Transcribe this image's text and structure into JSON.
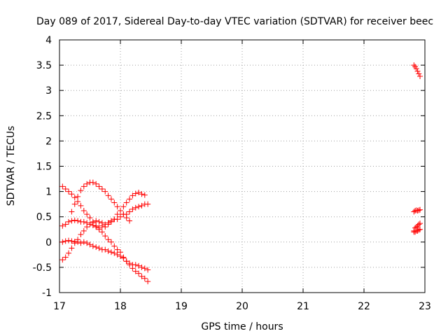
{
  "chart_data": {
    "type": "scatter",
    "title": "Day 089 of 2017, Sidereal Day-to-day VTEC variation (SDTVAR) for receiver beec",
    "xlabel": "GPS time / hours",
    "ylabel": "SDTVAR / TECUs",
    "xlim": [
      17,
      23
    ],
    "ylim": [
      -1,
      4
    ],
    "x_ticks": [
      "17",
      "18",
      "19",
      "20",
      "21",
      "22",
      "23"
    ],
    "y_ticks": [
      "-1",
      "-0.5",
      "0",
      "0.5",
      "1",
      "1.5",
      "2",
      "2.5",
      "3",
      "3.5",
      "4"
    ],
    "grid": true,
    "legend": "none",
    "marker": "plus",
    "color": "#ff0000",
    "series": [
      {
        "x": [
          17.05,
          17.1,
          17.15,
          17.2,
          17.25,
          17.3,
          17.35,
          17.4,
          17.45,
          17.5,
          17.55,
          17.6,
          17.65,
          17.7,
          17.75,
          17.8,
          17.85,
          17.9,
          17.95,
          18.0,
          18.05,
          18.1,
          18.15,
          18.2,
          18.25,
          18.3,
          18.35,
          18.4,
          18.45
        ],
        "y": [
          -0.35,
          -0.3,
          -0.22,
          -0.12,
          -0.02,
          0.05,
          0.15,
          0.22,
          0.3,
          0.35,
          0.38,
          0.42,
          0.4,
          0.38,
          0.35,
          0.38,
          0.42,
          0.45,
          0.45,
          0.5,
          0.55,
          0.55,
          0.6,
          0.65,
          0.68,
          0.7,
          0.72,
          0.75,
          0.75
        ]
      },
      {
        "x": [
          17.05,
          17.1,
          17.15,
          17.2,
          17.25,
          17.3,
          17.35,
          17.4,
          17.45,
          17.5,
          17.55,
          17.6,
          17.65,
          17.7,
          17.75,
          17.8,
          17.85,
          17.9,
          17.95,
          18.0,
          18.05,
          18.1,
          18.15,
          18.2,
          18.25,
          18.3,
          18.35,
          18.4,
          18.45
        ],
        "y": [
          0.0,
          0.02,
          0.03,
          0.02,
          0.01,
          0.0,
          -0.02,
          0.0,
          -0.02,
          -0.05,
          -0.08,
          -0.1,
          -0.12,
          -0.15,
          -0.15,
          -0.18,
          -0.2,
          -0.22,
          -0.25,
          -0.28,
          -0.32,
          -0.38,
          -0.42,
          -0.45,
          -0.45,
          -0.47,
          -0.5,
          -0.52,
          -0.55
        ]
      },
      {
        "x": [
          17.05,
          17.1,
          17.15,
          17.2,
          17.25,
          17.3,
          17.35,
          17.4,
          17.45,
          17.5,
          17.55,
          17.6,
          17.65,
          17.7,
          17.75,
          17.8,
          17.85,
          17.9,
          17.95,
          18.0,
          18.05,
          18.1,
          18.15,
          18.2,
          18.25,
          18.3,
          18.35,
          18.4
        ],
        "y": [
          0.32,
          0.35,
          0.4,
          0.42,
          0.43,
          0.42,
          0.4,
          0.4,
          0.38,
          0.35,
          0.33,
          0.3,
          0.28,
          0.32,
          0.3,
          0.35,
          0.4,
          0.45,
          0.55,
          0.62,
          0.7,
          0.78,
          0.85,
          0.92,
          0.96,
          0.98,
          0.95,
          0.93
        ]
      },
      {
        "x": [
          17.05,
          17.1,
          17.15,
          17.2,
          17.25,
          17.3,
          17.35,
          17.4,
          17.45,
          17.5,
          17.55,
          17.6,
          17.65,
          17.7,
          17.75,
          17.8,
          17.85,
          17.9,
          17.95,
          18.0,
          18.05,
          18.1,
          18.15,
          18.2,
          18.25,
          18.3,
          18.35,
          18.4,
          18.45
        ],
        "y": [
          1.1,
          1.05,
          1.0,
          0.95,
          0.88,
          0.8,
          0.72,
          0.62,
          0.55,
          0.48,
          0.4,
          0.32,
          0.25,
          0.2,
          0.12,
          0.05,
          0.0,
          -0.08,
          -0.15,
          -0.2,
          -0.3,
          -0.38,
          -0.45,
          -0.52,
          -0.58,
          -0.62,
          -0.68,
          -0.72,
          -0.78
        ]
      },
      {
        "x": [
          17.2,
          17.25,
          17.3,
          17.35,
          17.4,
          17.45,
          17.5,
          17.55,
          17.6,
          17.65,
          17.7,
          17.75,
          17.8,
          17.85,
          17.9,
          17.95,
          18.0,
          18.05,
          18.1,
          18.15
        ],
        "y": [
          0.6,
          0.75,
          0.9,
          1.02,
          1.1,
          1.15,
          1.18,
          1.18,
          1.15,
          1.1,
          1.05,
          1.0,
          0.92,
          0.85,
          0.78,
          0.7,
          0.62,
          0.55,
          0.48,
          0.42
        ]
      },
      {
        "x": [
          22.82,
          22.84,
          22.86,
          22.88,
          22.9,
          22.92
        ],
        "y": [
          3.5,
          3.47,
          3.43,
          3.38,
          3.33,
          3.28
        ]
      },
      {
        "x": [
          22.82,
          22.84,
          22.86,
          22.88,
          22.9,
          22.92
        ],
        "y": [
          0.6,
          0.62,
          0.63,
          0.62,
          0.63,
          0.64
        ]
      },
      {
        "x": [
          22.82,
          22.84,
          22.86,
          22.88,
          22.9,
          22.92
        ],
        "y": [
          0.22,
          0.28,
          0.3,
          0.32,
          0.35,
          0.37
        ]
      },
      {
        "x": [
          22.82,
          22.84,
          22.86,
          22.88,
          22.9,
          22.92
        ],
        "y": [
          0.2,
          0.2,
          0.22,
          0.22,
          0.24,
          0.25
        ]
      }
    ]
  }
}
